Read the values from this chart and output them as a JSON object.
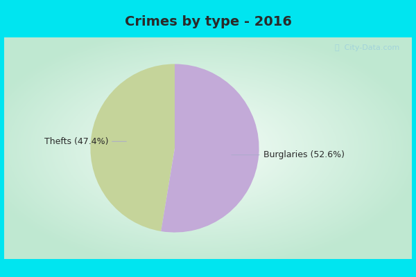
{
  "title": "Crimes by type - 2016",
  "slices": [
    47.4,
    52.6
  ],
  "slice_colors": [
    "#c5d49a",
    "#c3aad8"
  ],
  "label_thefts": "Thefts (47.4%)",
  "label_burglaries": "Burglaries (52.6%)",
  "bg_cyan": "#00e5f0",
  "bg_inner_white": "#f0faf5",
  "bg_outer_green": "#b8e8cc",
  "startangle": 90,
  "title_fontsize": 14,
  "label_fontsize": 9,
  "watermark": "City-Data.com",
  "title_color": "#2a2a2a",
  "label_color": "#2a2a2a",
  "connector_color": "#aaaacc",
  "top_bar_height": 0.135,
  "bottom_bar_height": 0.065,
  "side_bar_width": 0.01
}
